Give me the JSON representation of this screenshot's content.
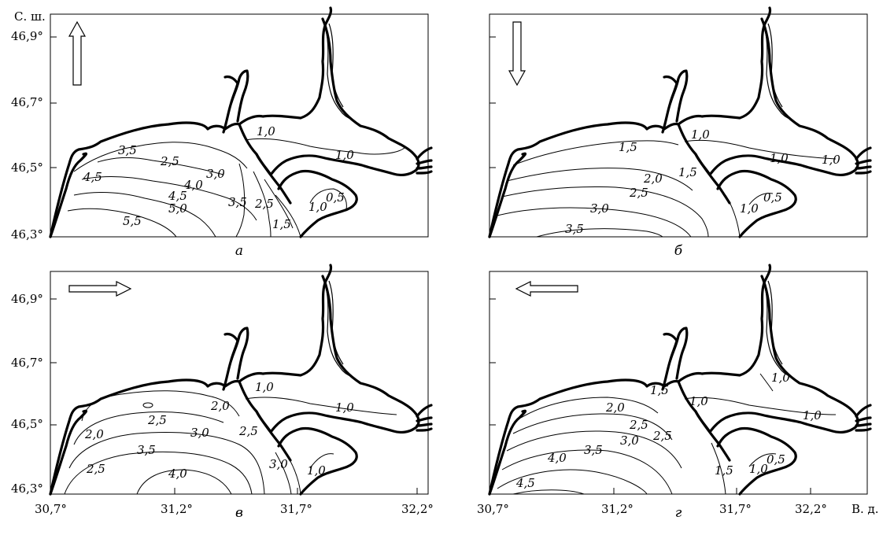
{
  "axes": {
    "lat_unit": "С. ш.",
    "lon_unit": "В. д.",
    "lat_ticks": [
      "46,9°",
      "46,7°",
      "46,5°",
      "46,3°"
    ],
    "lon_ticks": [
      "30,7°",
      "31,2°",
      "31,7°",
      "32,2°"
    ]
  },
  "panels": [
    {
      "letter": "а",
      "wind_arrow": "arrow-up-icon",
      "isolines": [
        "3,5",
        "2,5",
        "3,0",
        "4,0",
        "4,5",
        "5,0",
        "5,5",
        "3,5",
        "2,5",
        "1,5",
        "1,0",
        "0,5",
        "1,0",
        "1,0",
        "4,5"
      ]
    },
    {
      "letter": "б",
      "wind_arrow": "arrow-down-icon",
      "isolines": [
        "1,5",
        "2,0",
        "1,5",
        "2,5",
        "3,0",
        "3,5",
        "1,0",
        "1,0",
        "1,0",
        "1,0",
        "0,5"
      ]
    },
    {
      "letter": "в",
      "wind_arrow": "arrow-right-icon",
      "isolines": [
        "2,0",
        "2,0",
        "2,5",
        "3,0",
        "2,5",
        "3,5",
        "4,0",
        "2,5",
        "3,0",
        "1,0",
        "1,0",
        "1,0"
      ]
    },
    {
      "letter": "г",
      "wind_arrow": "arrow-left-icon",
      "isolines": [
        "2,0",
        "2,5",
        "3,0",
        "3,5",
        "4,0",
        "4,5",
        "2,5",
        "1,5",
        "1,5",
        "1,0",
        "1,0",
        "1,0",
        "0,5",
        "1,0"
      ]
    }
  ]
}
